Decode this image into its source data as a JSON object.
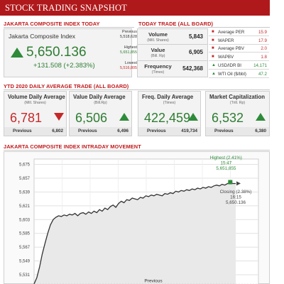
{
  "header": {
    "title": "STOCK TRADING SNAPSHOT"
  },
  "sections": {
    "jci_today": "JAKARTA COMPOSITE INDEX TODAY",
    "today_trade": "TODAY TRADE (ALL BOARD)",
    "ytd": "YTD 2020 DAILY AVERAGE TRADE (ALL BOARD)",
    "intraday": "JAKARTA COMPOSITE INDEX INTRADAY MOVEMENT"
  },
  "jci": {
    "name": "Jakarta Composite Index",
    "value": "5,650.136",
    "change": "+131.508 (+2.383%)",
    "direction": "up",
    "previous_label": "Previous",
    "previous": "5,518,628",
    "highest_label": "Highest",
    "highest": "5,651,855",
    "lowest_label": "Lowest",
    "lowest": "5,516,805"
  },
  "today_trade": {
    "volume_label": "Volume",
    "volume_unit": "(Mill. Shares)",
    "volume": "5,843",
    "value_label": "Value",
    "value_unit": "(Bill. Rp)",
    "value": "6,905",
    "frequency_label": "Frequency",
    "frequency_unit": "(Times)",
    "frequency": "542,368"
  },
  "indicators": [
    {
      "label": "Average PER",
      "value": "15.9",
      "marker": "■",
      "color": "#c62828"
    },
    {
      "label": "WAPER",
      "value": "17.9",
      "marker": "■",
      "color": "#c62828"
    },
    {
      "label": "Average PBV",
      "value": "2.0",
      "marker": "■",
      "color": "#c62828"
    },
    {
      "label": "WAPBV",
      "value": "1.8",
      "marker": "■",
      "color": "#c62828"
    },
    {
      "label": "USD/IDR BI",
      "value": "14,171",
      "marker": "▲",
      "color": "#2e8b3a"
    },
    {
      "label": "WTI Oil ($/bbl)",
      "value": "47.2",
      "marker": "▲",
      "color": "#2e8b3a"
    }
  ],
  "ytd_cards": [
    {
      "title": "Volume Daily Average",
      "unit": "(Mill. Shares)",
      "value": "6,781",
      "direction": "down",
      "color": "#c62828",
      "previous_label": "Previous",
      "previous": "6,802"
    },
    {
      "title": "Value Daily Average",
      "unit": "(Bill.Rp)",
      "value": "6,506",
      "direction": "up",
      "color": "#2e7d32",
      "previous_label": "Previous",
      "previous": "6,496"
    },
    {
      "title": "Freq. Daily Average",
      "unit": "(Times)",
      "value": "422,459",
      "direction": "up",
      "color": "#2e7d32",
      "previous_label": "Previous",
      "previous": "419,734"
    },
    {
      "title": "Market Capitalization",
      "unit": "(Trill. Rp)",
      "value": "6,532",
      "direction": "up",
      "color": "#2e7d32",
      "previous_label": "Previous",
      "previous": "6,380"
    }
  ],
  "chart_data": {
    "type": "area",
    "title": "JAKARTA COMPOSITE INDEX INTRADAY MOVEMENT",
    "xlabel": "",
    "ylabel": "",
    "ylim": [
      5518,
      5682
    ],
    "y_ticks": [
      "5,675",
      "5,657",
      "5,639",
      "5,621",
      "5,603",
      "5,585",
      "5,567",
      "5,549",
      "5,531"
    ],
    "grid": true,
    "series": [
      {
        "x": [
          0,
          1,
          2,
          3,
          4,
          5,
          6,
          7,
          8,
          9,
          10,
          11,
          12,
          13,
          14,
          15,
          16,
          17,
          18,
          19,
          20,
          21,
          22,
          23,
          24,
          25,
          26,
          27,
          28,
          29,
          30,
          31,
          32,
          33,
          34,
          35,
          36,
          37,
          38,
          39,
          40,
          41,
          42,
          43,
          44,
          45,
          46,
          47,
          48,
          49,
          50,
          51,
          52,
          53,
          54,
          55,
          56,
          57,
          58,
          59,
          60,
          61,
          62,
          63,
          64,
          65,
          66,
          67,
          68,
          69,
          70,
          71,
          72,
          73,
          74
        ],
        "values": [
          5519,
          5527,
          5541,
          5558,
          5572,
          5585,
          5596,
          5603,
          5606,
          5608,
          5607,
          5609,
          5608,
          5610,
          5609,
          5611,
          5608,
          5611,
          5612,
          5610,
          5613,
          5611,
          5614,
          5612,
          5616,
          5614,
          5618,
          5616,
          5620,
          5622,
          5619,
          5624,
          5627,
          5625,
          5629,
          5628,
          5631,
          5630,
          5629,
          5632,
          5631,
          5634,
          5633,
          5635,
          5634,
          5636,
          5635,
          5634,
          5637,
          5636,
          5638,
          5637,
          5640,
          5639,
          5641,
          5640,
          5642,
          5641,
          5643,
          5642,
          5644,
          5643,
          5645,
          5644,
          5646,
          5645,
          5647,
          5648,
          5647,
          5649,
          5648,
          5650,
          5651,
          5650,
          5650
        ]
      }
    ],
    "annotations": {
      "highest_label": "Highest (2.41%)",
      "highest_time": "15:47",
      "highest_value": "5,651,855",
      "closing_label": "Closing (2.38%)",
      "closing_time": "16:15",
      "closing_value": "5,650.136",
      "previous_label": "Previous"
    },
    "colors": {
      "line": "#333333",
      "fill": "#e9e9e9",
      "marker": "#2e8b3a"
    }
  }
}
